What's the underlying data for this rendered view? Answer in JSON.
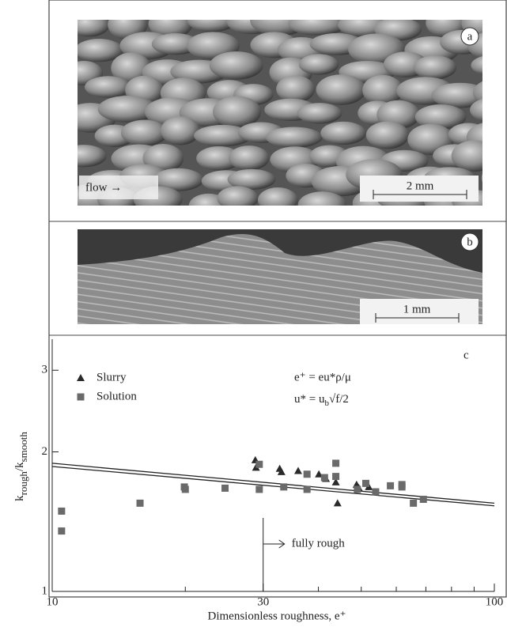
{
  "panels": {
    "a": {
      "label": "a",
      "flow": "flow →",
      "scale": "2 mm"
    },
    "b": {
      "label": "b",
      "scale": "1 mm"
    }
  },
  "chart_data": {
    "type": "scatter",
    "label": "c",
    "xlabel": "Dimensionless roughness,  e⁺",
    "ylabel": {
      "main1": "k",
      "sub1": "rough",
      "main2": "/k",
      "sub2": "smooth"
    },
    "equations": [
      {
        "text": "e⁺ = eu*ρ/μ"
      },
      {
        "text": "u* = u",
        "sub": "b",
        "rest": "√f/2"
      }
    ],
    "annotation": {
      "x": 30,
      "text": "fully rough"
    },
    "xlog": true,
    "ylog": true,
    "xlim": [
      10,
      100
    ],
    "ylim": [
      1,
      3.5
    ],
    "xticks": [
      10,
      30,
      100
    ],
    "xminor": [
      20,
      40,
      50,
      60,
      70,
      80,
      90
    ],
    "yticks": [
      1,
      2,
      3
    ],
    "legend": "top-left",
    "series": [
      {
        "name": "Slurry",
        "marker": "triangle",
        "color": "#2a2a2a",
        "x": [
          28.8,
          28.9,
          32.7,
          36.0,
          33.0,
          40.1,
          41.6,
          43.8,
          48.8,
          49.4,
          52.0,
          44.2
        ],
        "values": [
          1.92,
          1.85,
          1.84,
          1.82,
          1.81,
          1.79,
          1.75,
          1.72,
          1.7,
          1.67,
          1.68,
          1.55
        ]
      },
      {
        "name": "Solution",
        "marker": "square",
        "color": "#6a6a6a",
        "x": [
          10.5,
          10.5,
          15.8,
          19.9,
          20.0,
          24.6,
          29.4,
          29.4,
          33.4,
          37.7,
          37.7,
          41.3,
          43.8,
          43.8,
          49.0,
          51.2,
          53.9,
          58.2,
          61.8,
          61.8,
          65.6,
          69.1
        ],
        "values": [
          1.49,
          1.35,
          1.55,
          1.68,
          1.66,
          1.67,
          1.88,
          1.66,
          1.68,
          1.79,
          1.66,
          1.76,
          1.77,
          1.89,
          1.66,
          1.71,
          1.64,
          1.69,
          1.7,
          1.68,
          1.55,
          1.58
        ]
      }
    ],
    "fits": [
      {
        "x": [
          10,
          100
        ],
        "values": [
          1.89,
          1.55
        ]
      },
      {
        "x": [
          10,
          100
        ],
        "values": [
          1.86,
          1.53
        ]
      }
    ]
  }
}
